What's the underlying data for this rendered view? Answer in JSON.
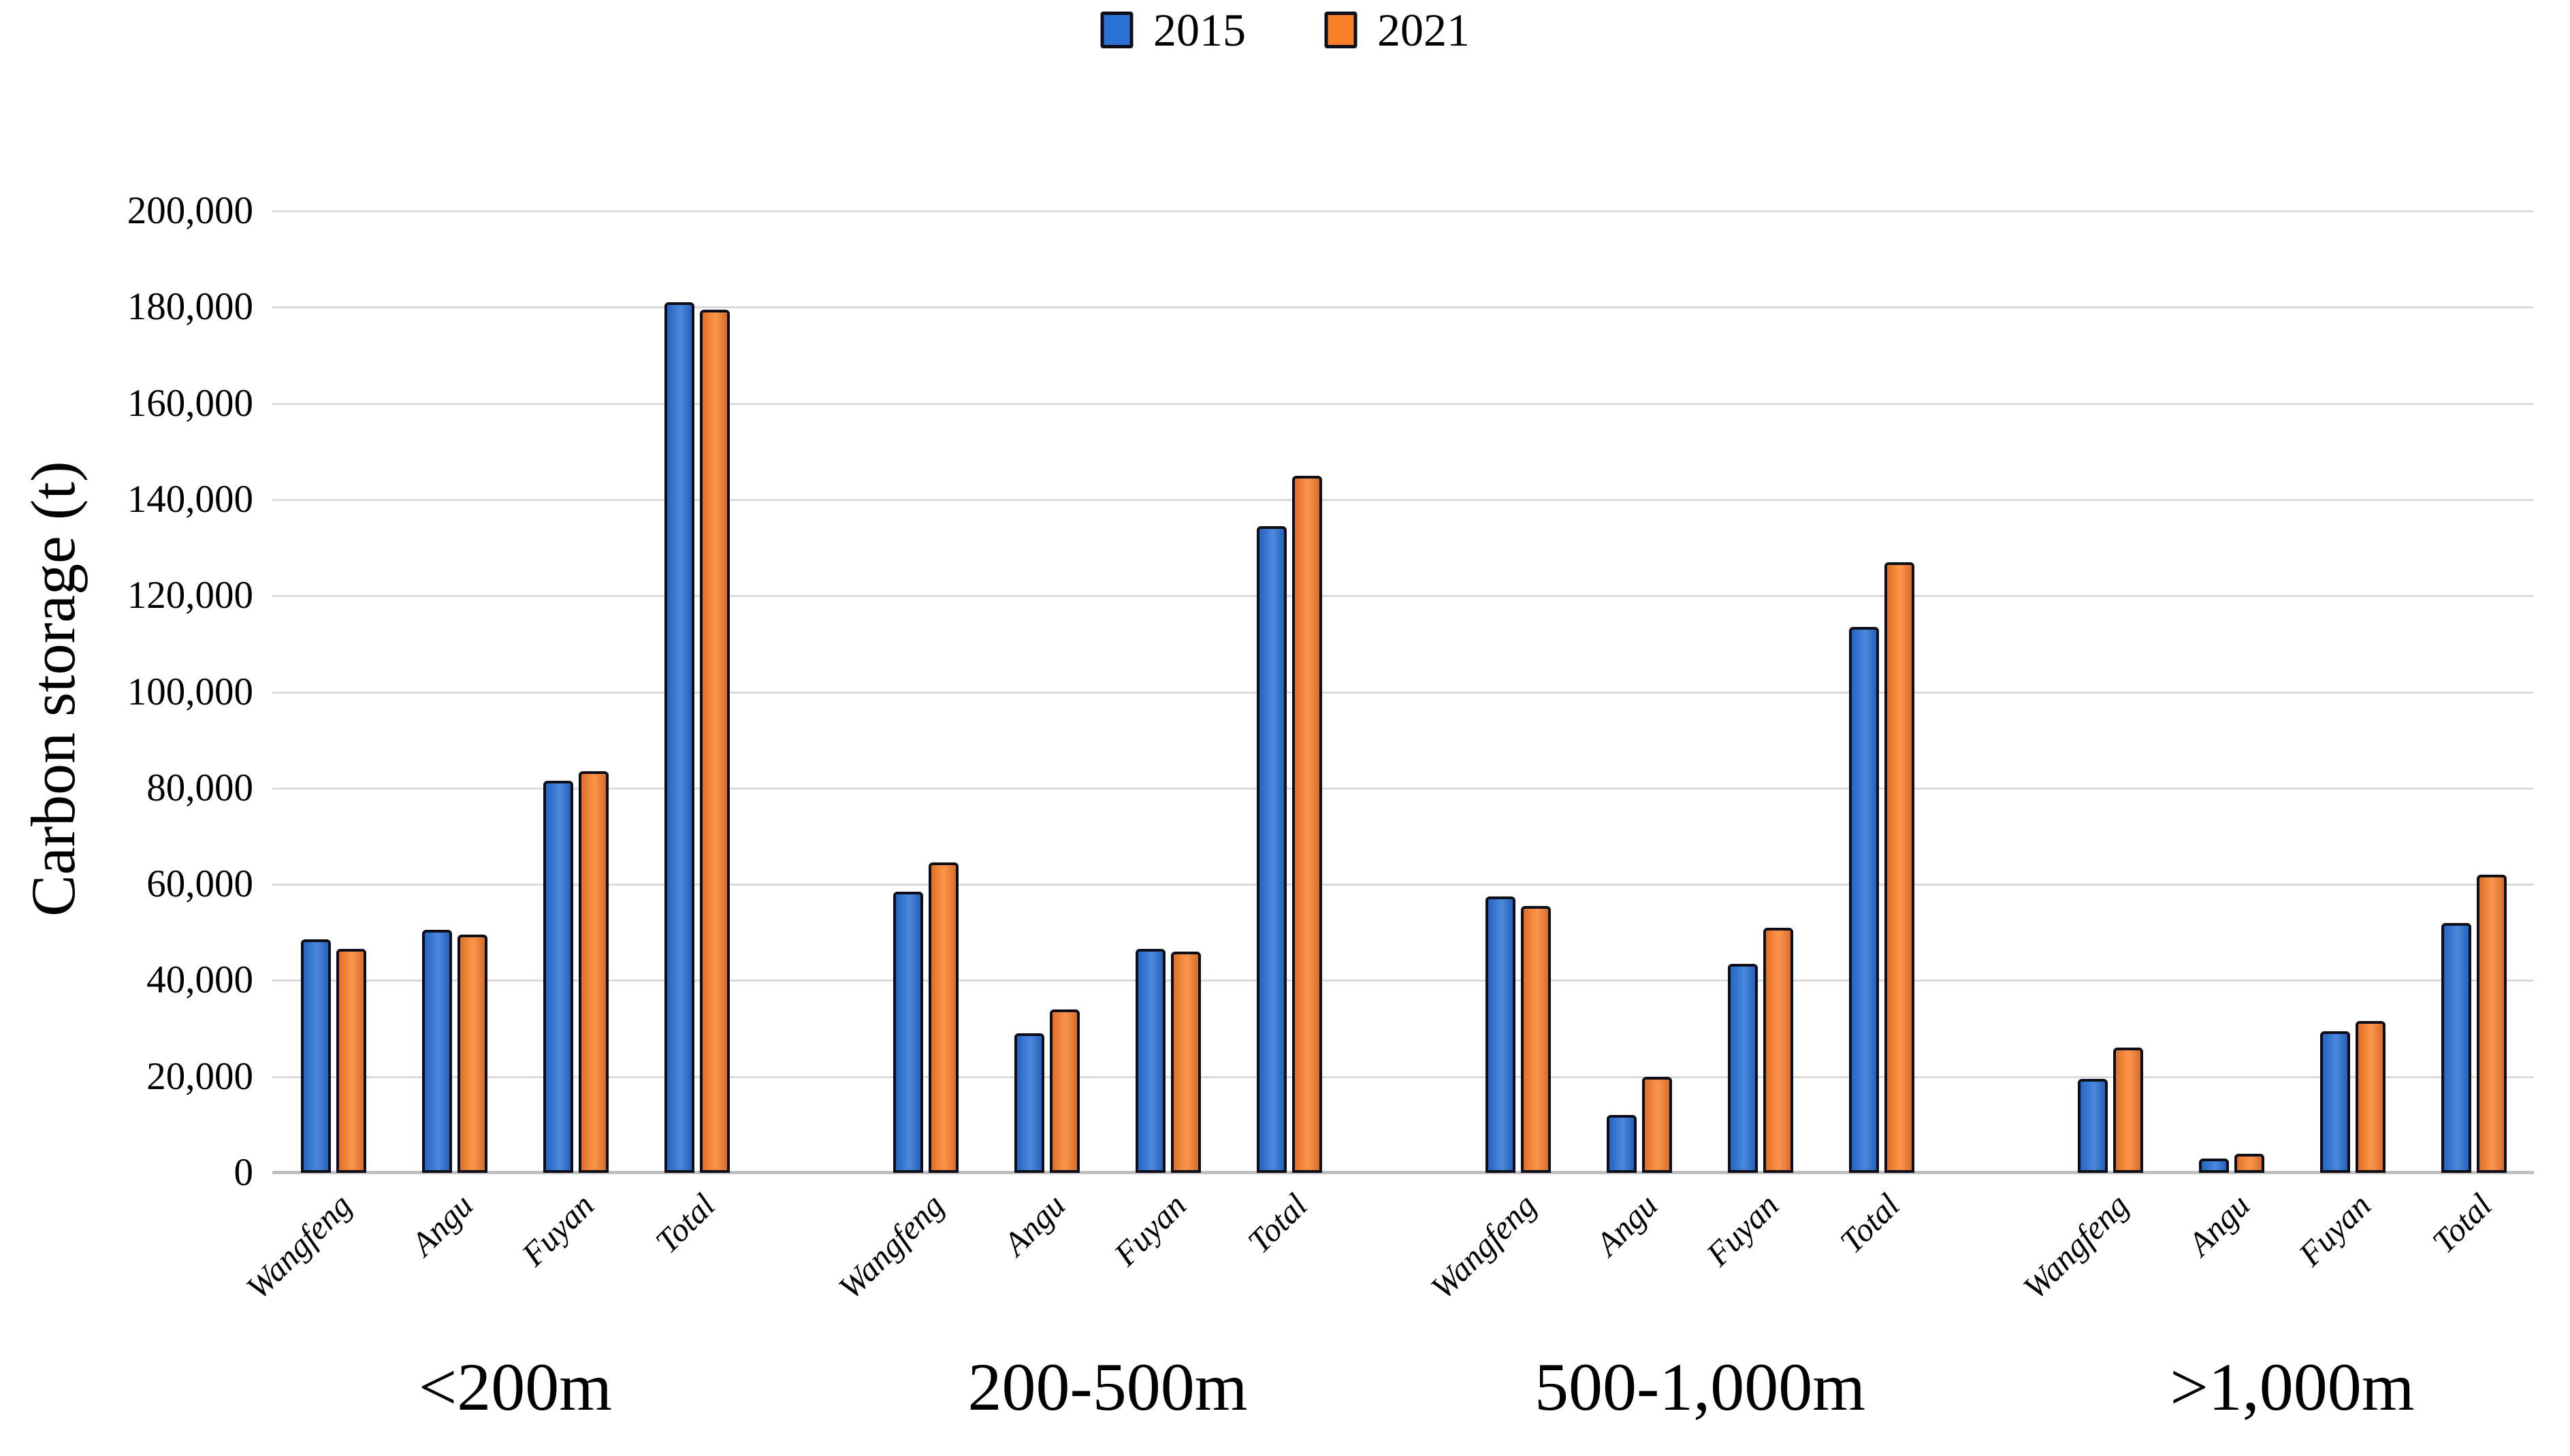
{
  "page": {
    "background": "#ffffff"
  },
  "colors": {
    "series_2015": "#2a72d4",
    "series_2021": "#f8802b",
    "bar_border": "#0e0e1a",
    "gridline": "#dadada",
    "axis_line": "#c0c0c0",
    "text": "#000000"
  },
  "y_axis": {
    "tick_labels": [
      "0",
      "20,000",
      "40,000",
      "60,000",
      "80,000",
      "100,000",
      "120,000",
      "140,000",
      "160,000",
      "180,000",
      "200,000"
    ]
  },
  "chart_data": {
    "type": "bar",
    "title": "",
    "xlabel": "",
    "ylabel": "Carbon storage (t)",
    "ylim": [
      0,
      200000
    ],
    "y_tick_step": 20000,
    "grid": true,
    "legend_position": "top-center",
    "group_labels": [
      "<200m",
      "200-500m",
      "500-1,000m",
      ">1,000m"
    ],
    "categories": [
      "Wangfeng",
      "Angu",
      "Fuyan",
      "Total"
    ],
    "series": [
      {
        "name": "2015",
        "color": "#2a72d4",
        "values_by_group": [
          [
            48500,
            50500,
            81500,
            181000
          ],
          [
            58500,
            29000,
            46500,
            134500
          ],
          [
            57500,
            12000,
            43500,
            113500
          ],
          [
            19500,
            3000,
            29500,
            52000
          ]
        ]
      },
      {
        "name": "2021",
        "color": "#f8802b",
        "values_by_group": [
          [
            46500,
            49500,
            83500,
            179500
          ],
          [
            64500,
            34000,
            46000,
            145000
          ],
          [
            55500,
            20000,
            51000,
            127000
          ],
          [
            26000,
            4000,
            31500,
            62000
          ]
        ]
      }
    ]
  }
}
